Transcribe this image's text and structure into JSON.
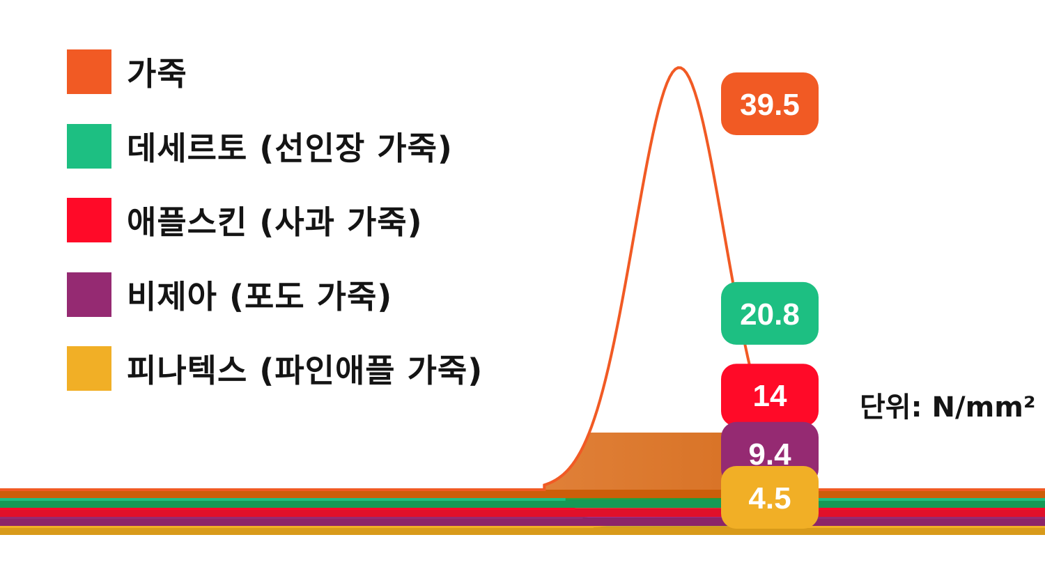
{
  "chart_data": {
    "type": "area",
    "unit": "단위: N/mm²",
    "series": [
      {
        "name": "가죽",
        "value": 39.5,
        "color": "#f15a24",
        "band": "#cc5e0a",
        "fill_light": "#f6a56a",
        "fill_dark": "#cc5e0a"
      },
      {
        "name": "데세르토 (선인장 가죽)",
        "value": 20.8,
        "color": "#1dbf82",
        "band": "#169a56",
        "fill_light": "#5db74a",
        "fill_dark": "#108a2c"
      },
      {
        "name": "애플스킨 (사과 가죽)",
        "value": 14,
        "color": "#ff0a28",
        "band": "#e0102a",
        "fill_light": "#e36552",
        "fill_dark": "#cf2a24"
      },
      {
        "name": "비제아 (포도 가죽)",
        "value": 9.4,
        "color": "#952a72",
        "band": "#8c2468",
        "fill_light": "#c24fc2",
        "fill_dark": "#8e1d6a"
      },
      {
        "name": "피나텍스 (파인애플 가죽)",
        "value": 4.5,
        "color": "#f1af26",
        "band": "#d89a1a",
        "fill_light": "#d8c873",
        "fill_dark": "#b8960c"
      }
    ]
  }
}
